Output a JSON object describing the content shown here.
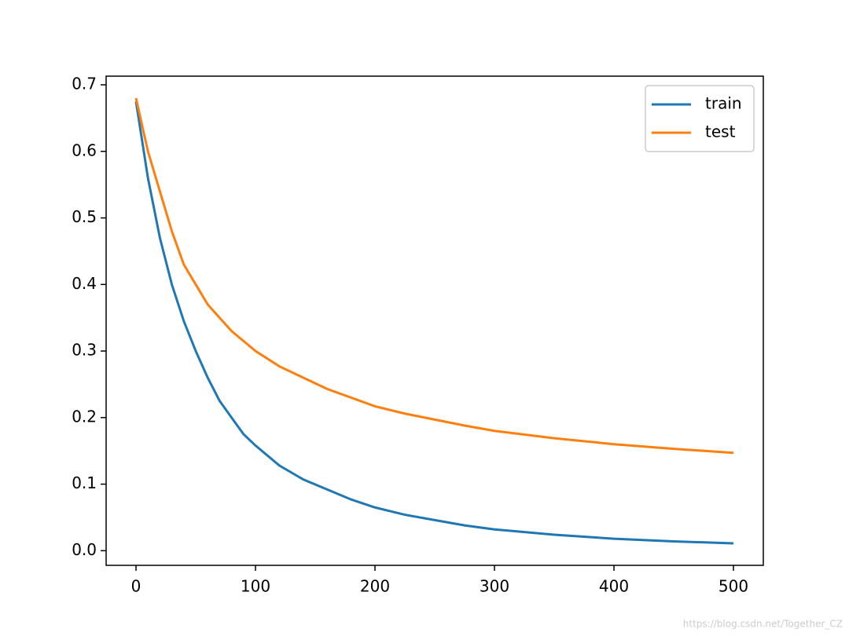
{
  "chart_data": {
    "type": "line",
    "x": [
      0,
      10,
      20,
      30,
      40,
      50,
      60,
      70,
      80,
      90,
      100,
      120,
      140,
      160,
      180,
      200,
      225,
      250,
      275,
      300,
      350,
      400,
      450,
      500
    ],
    "series": [
      {
        "name": "train",
        "color": "#1f77b4",
        "values": [
          0.675,
          0.56,
          0.47,
          0.4,
          0.345,
          0.3,
          0.26,
          0.225,
          0.2,
          0.175,
          0.158,
          0.128,
          0.107,
          0.092,
          0.077,
          0.065,
          0.054,
          0.046,
          0.038,
          0.032,
          0.024,
          0.018,
          0.014,
          0.011
        ]
      },
      {
        "name": "test",
        "color": "#ff7f0e",
        "values": [
          0.68,
          0.6,
          0.54,
          0.48,
          0.43,
          0.4,
          0.37,
          0.35,
          0.33,
          0.315,
          0.3,
          0.277,
          0.26,
          0.243,
          0.23,
          0.217,
          0.206,
          0.197,
          0.188,
          0.18,
          0.169,
          0.16,
          0.153,
          0.147
        ]
      }
    ],
    "xlim": [
      -25,
      525
    ],
    "xticks": [
      0,
      100,
      200,
      300,
      400,
      500
    ],
    "ylim": [
      -0.022,
      0.713
    ],
    "yticks": [
      {
        "value": 0,
        "label": "0.0"
      },
      0.1,
      0.2,
      0.3,
      0.4,
      0.5,
      0.6,
      0.7
    ],
    "legend": "upper right",
    "watermark": "https://blog.csdn.net/Together_CZ"
  }
}
